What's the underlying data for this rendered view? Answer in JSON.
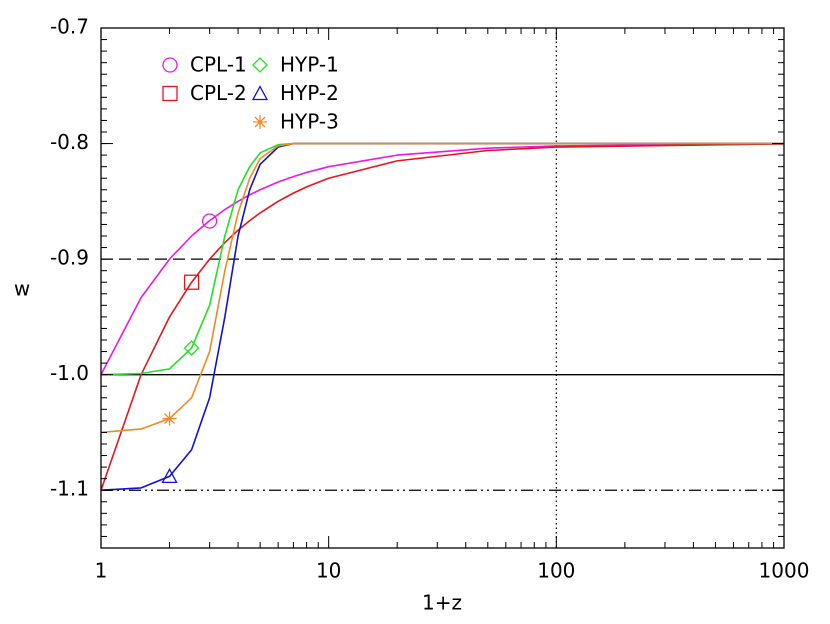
{
  "chart_data": {
    "type": "line",
    "xlabel": "1+z",
    "ylabel": "w",
    "xscale": "log",
    "xlim": [
      1,
      1000
    ],
    "ylim": [
      -1.15,
      -0.7
    ],
    "xticks": [
      1,
      10,
      100,
      1000
    ],
    "yticks": [
      -0.7,
      -0.8,
      -0.9,
      {
        "value": -1,
        "label": "-1.0"
      },
      -1.1
    ],
    "x": [
      1,
      1.5,
      2,
      2.5,
      3,
      3.5,
      4,
      4.5,
      5,
      6,
      7,
      8,
      10,
      20,
      50,
      100,
      1000
    ],
    "series": [
      {
        "name": "CPL-1",
        "color": "#e61ae6",
        "marker": "circle",
        "marker_x": 3,
        "marker_y": -0.867,
        "values": [
          -1,
          -0.9333,
          -0.9,
          -0.88,
          -0.8667,
          -0.8571,
          -0.85,
          -0.8444,
          -0.84,
          -0.8333,
          -0.8286,
          -0.825,
          -0.82,
          -0.81,
          -0.804,
          -0.802,
          -0.8002
        ]
      },
      {
        "name": "CPL-2",
        "color": "#e8141d",
        "marker": "square",
        "marker_x": 2.5,
        "marker_y": -0.92,
        "values": [
          -1.1,
          -1.0,
          -0.95,
          -0.92,
          -0.9,
          -0.8857,
          -0.875,
          -0.8667,
          -0.86,
          -0.85,
          -0.8429,
          -0.8375,
          -0.83,
          -0.815,
          -0.806,
          -0.803,
          -0.8003
        ]
      },
      {
        "name": "HYP-1",
        "color": "#22e022",
        "marker": "diamond",
        "marker_x": 2.5,
        "marker_y": -0.977,
        "values": [
          -1.0,
          -0.999,
          -0.995,
          -0.977,
          -0.94,
          -0.88,
          -0.84,
          -0.82,
          -0.808,
          -0.801,
          -0.8,
          -0.8,
          -0.8,
          -0.8,
          -0.8,
          -0.8,
          -0.8
        ]
      },
      {
        "name": "HYP-2",
        "color": "#1010d8",
        "marker": "triangle",
        "marker_x": 2,
        "marker_y": -1.088,
        "values": [
          -1.1,
          -1.098,
          -1.088,
          -1.065,
          -1.02,
          -0.95,
          -0.88,
          -0.84,
          -0.818,
          -0.803,
          -0.8,
          -0.8,
          -0.8,
          -0.8,
          -0.8,
          -0.8,
          -0.8
        ]
      },
      {
        "name": "HYP-3",
        "color": "#f08a24",
        "marker": "asterisk",
        "marker_x": 2,
        "marker_y": -1.038,
        "values": [
          -1.05,
          -1.047,
          -1.038,
          -1.02,
          -0.98,
          -0.91,
          -0.86,
          -0.83,
          -0.813,
          -0.802,
          -0.8,
          -0.8,
          -0.8,
          -0.8,
          -0.8,
          -0.8,
          -0.8
        ]
      }
    ],
    "hlines": [
      {
        "y": -0.9,
        "style": "dashed"
      },
      {
        "y": -1,
        "style": "solid"
      },
      {
        "y": -1.1,
        "style": "dashdotdot"
      }
    ],
    "vlines": [
      {
        "x": 100,
        "style": "dotted"
      }
    ]
  }
}
